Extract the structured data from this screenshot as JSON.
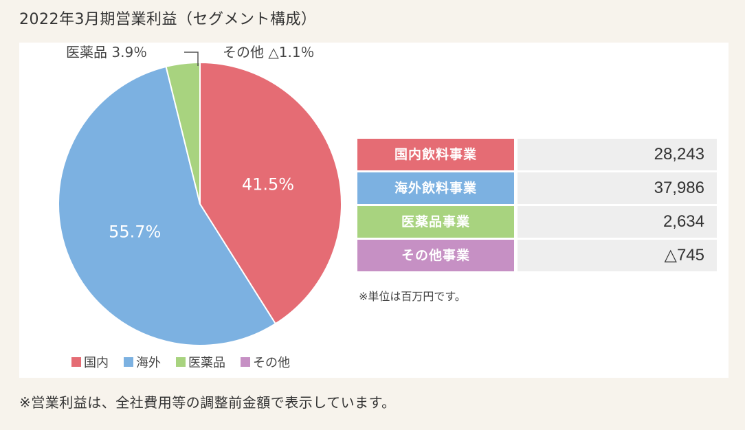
{
  "title": "2022年3月期営業利益（セグメント構成）",
  "footnote": "※営業利益は、全社費用等の調整前金額で表示しています。",
  "unit_note": "※単位は百万円です。",
  "colors": {
    "domestic": "#e56c74",
    "overseas": "#7cb1e1",
    "pharma": "#a8d37f",
    "other": "#c690c4"
  },
  "chart_data": {
    "type": "pie",
    "title": "2022年3月期営業利益（セグメント構成）",
    "slices": [
      {
        "name": "国内",
        "value": 41.5,
        "label": "41.5%",
        "color": "#e56c74"
      },
      {
        "name": "海外",
        "value": 55.7,
        "label": "55.7%",
        "color": "#7cb1e1"
      },
      {
        "name": "医薬品",
        "value": 3.9,
        "label": "3.9%",
        "color": "#a8d37f"
      }
    ],
    "outside_labels": {
      "pharma": "医薬品 3.9％",
      "other": "その他 △1.1％"
    },
    "legend": [
      "国内",
      "海外",
      "医薬品",
      "その他"
    ],
    "legend_position": "bottom-left"
  },
  "table": {
    "rows": [
      {
        "label": "国内飲料事業",
        "value": "28,243",
        "color": "#e56c74"
      },
      {
        "label": "海外飲料事業",
        "value": "37,986",
        "color": "#7cb1e1"
      },
      {
        "label": "医薬品事業",
        "value": "2,634",
        "color": "#a8d37f"
      },
      {
        "label": "その他事業",
        "value": "△745",
        "color": "#c690c4"
      }
    ]
  }
}
